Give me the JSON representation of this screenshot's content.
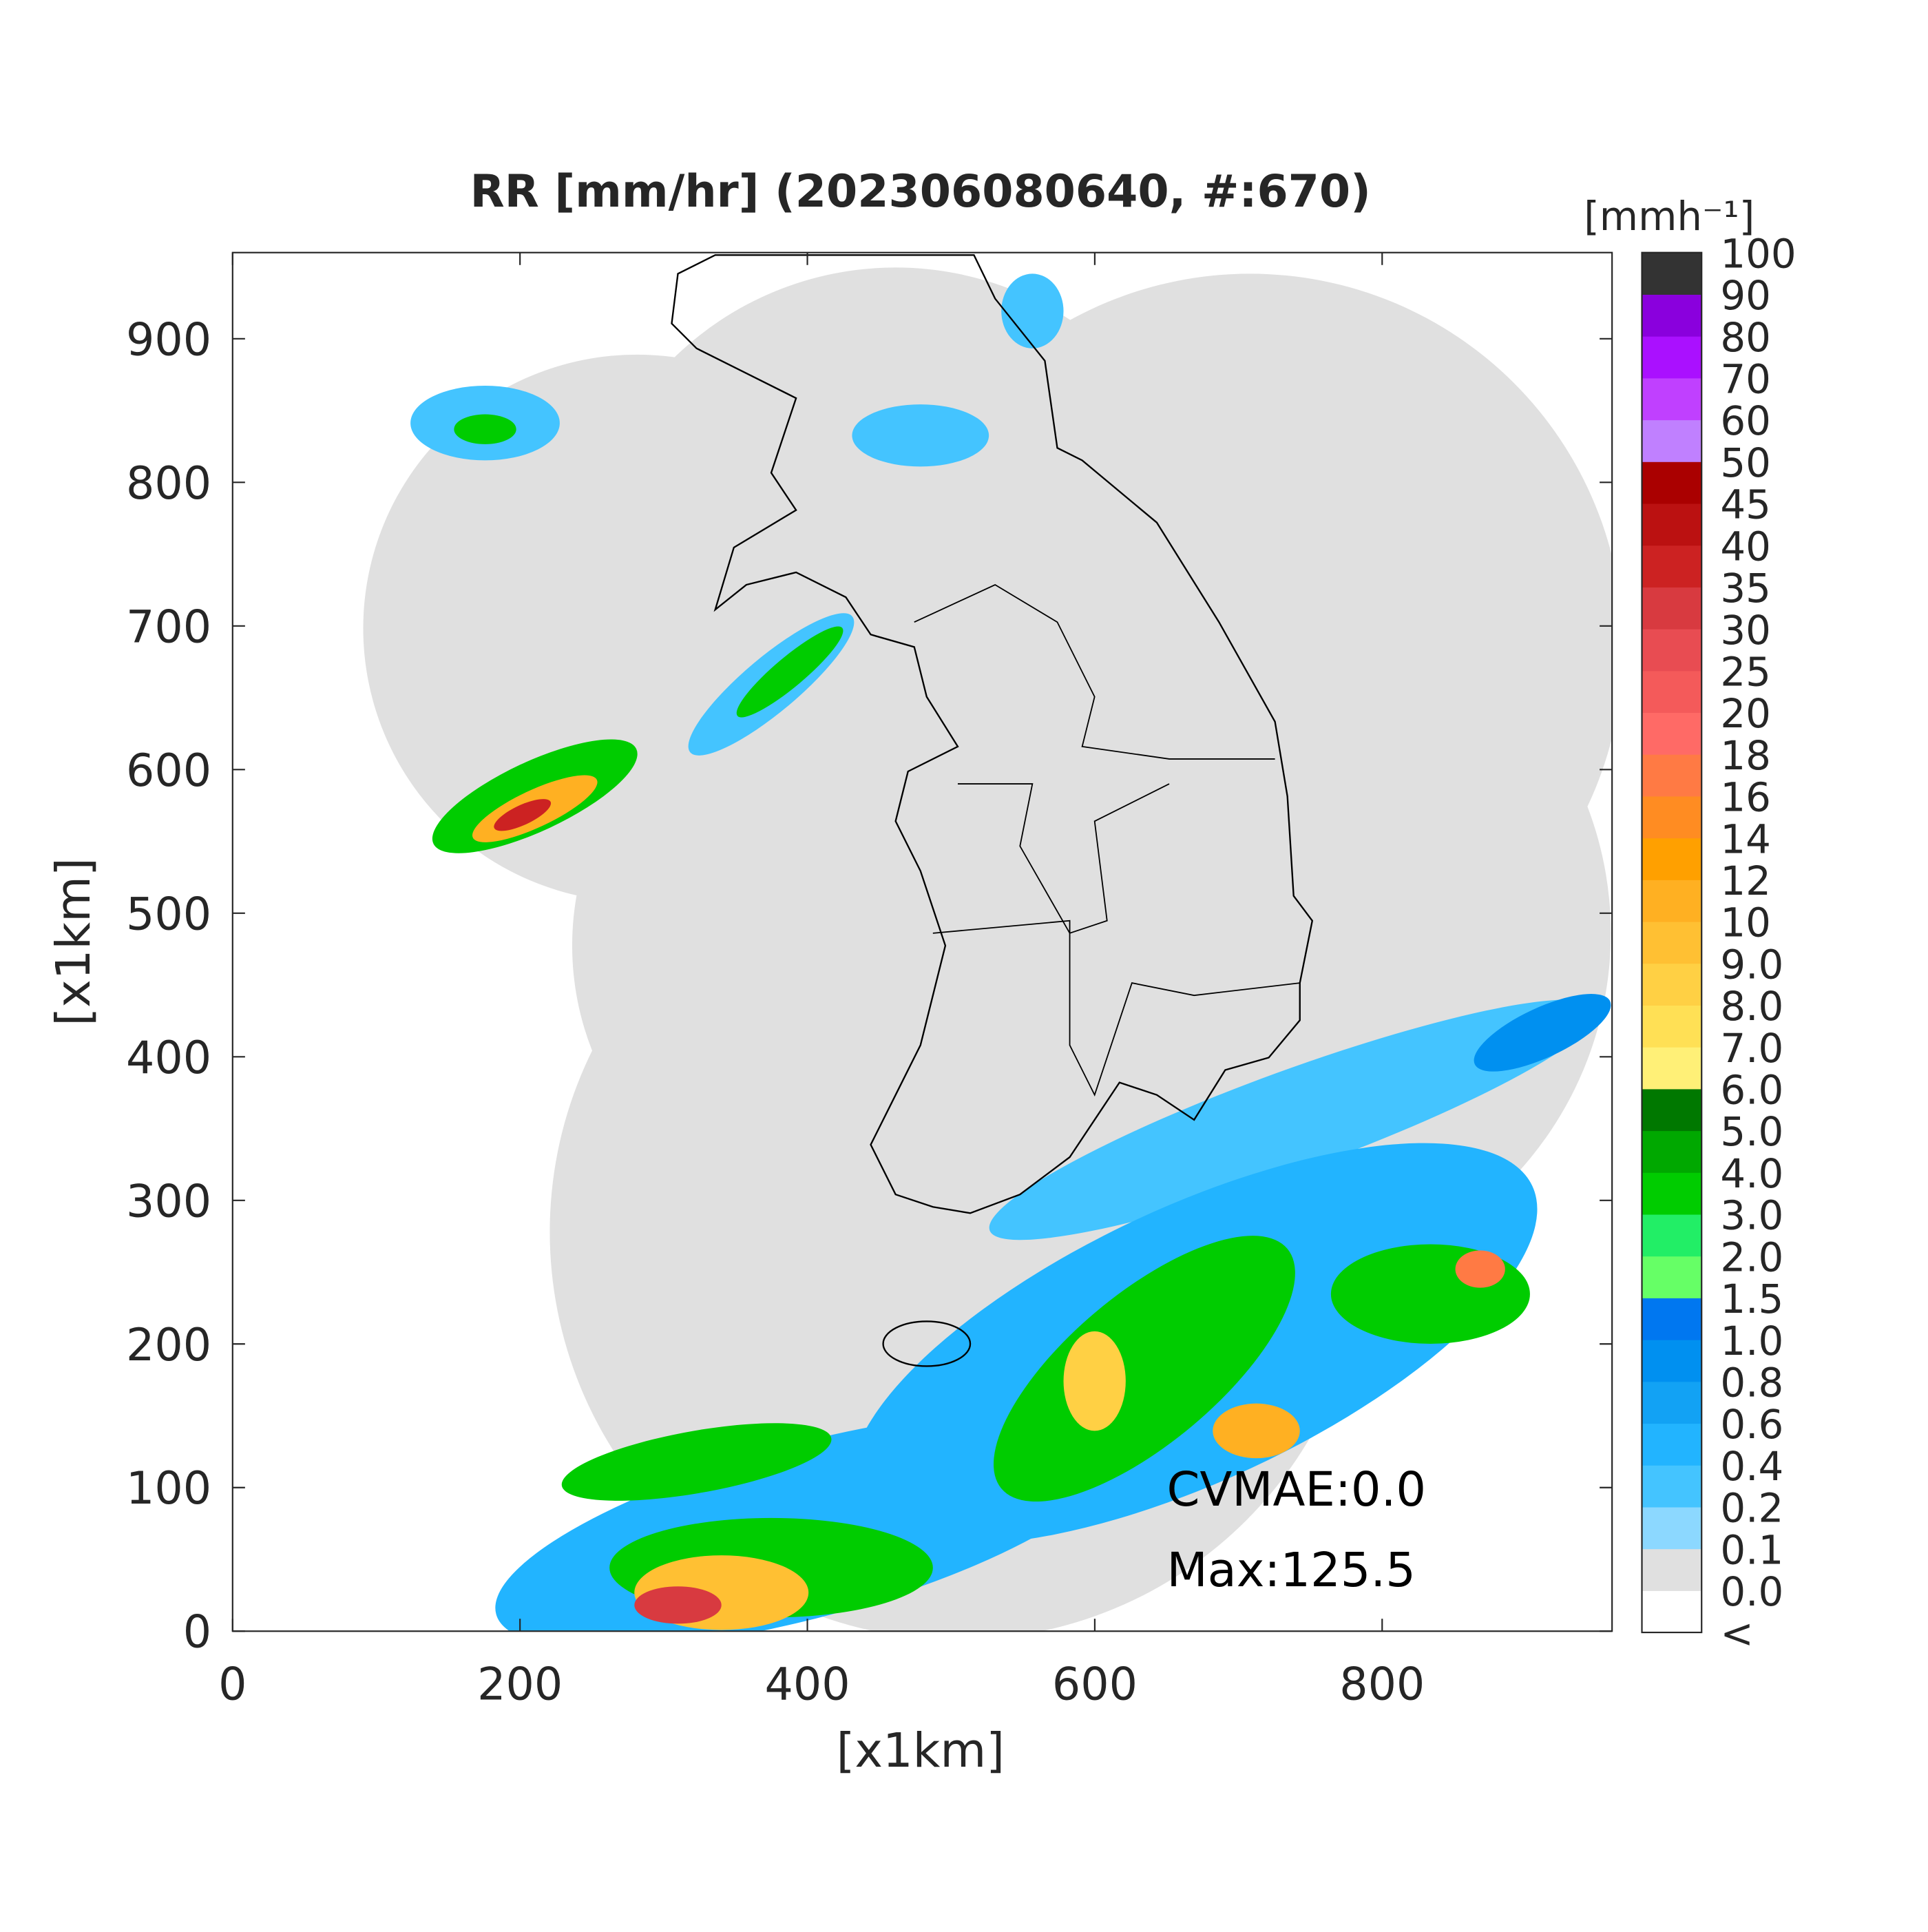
{
  "chart_data": {
    "type": "radar-map",
    "title": "RR [mm/hr] (202306080640, #:670)",
    "x_label": "[x1km]",
    "y_label": "[x1km]",
    "xlim": [
      0,
      960
    ],
    "ylim": [
      0,
      960
    ],
    "xticks": [
      0,
      200,
      400,
      600,
      800
    ],
    "yticks": [
      0,
      100,
      200,
      300,
      400,
      500,
      600,
      700,
      800,
      900
    ],
    "annotations": [
      "CVMAE:0.0",
      "Max:125.5"
    ],
    "colorbar": {
      "unit": "[mmh⁻¹]",
      "levels": [
        "<",
        "0.0",
        "0.1",
        "0.2",
        "0.4",
        "0.6",
        "0.8",
        "1.0",
        "1.5",
        "2.0",
        "3.0",
        "4.0",
        "5.0",
        "6.0",
        "7.0",
        "8.0",
        "9.0",
        "10",
        "12",
        "14",
        "16",
        "18",
        "20",
        "25",
        "30",
        "35",
        "40",
        "45",
        "50",
        "60",
        "70",
        "80",
        "90",
        "100"
      ],
      "colors": [
        "#ffffff",
        "#e0e0e0",
        "#8cd8ff",
        "#44c4ff",
        "#22b4ff",
        "#12a2f4",
        "#0090f0",
        "#0077f0",
        "#66ff66",
        "#22ee66",
        "#00cc00",
        "#00a800",
        "#007800",
        "#fff077",
        "#ffe055",
        "#ffd044",
        "#ffc033",
        "#ffb022",
        "#ffa000",
        "#ff8c22",
        "#ff7a44",
        "#ff6a66",
        "#f45a5a",
        "#e84c52",
        "#d83a40",
        "#cc2222",
        "#bb1111",
        "#aa0000",
        "#c080ff",
        "#c040ff",
        "#aa10ff",
        "#8a00dd",
        "#333333"
      ]
    }
  }
}
